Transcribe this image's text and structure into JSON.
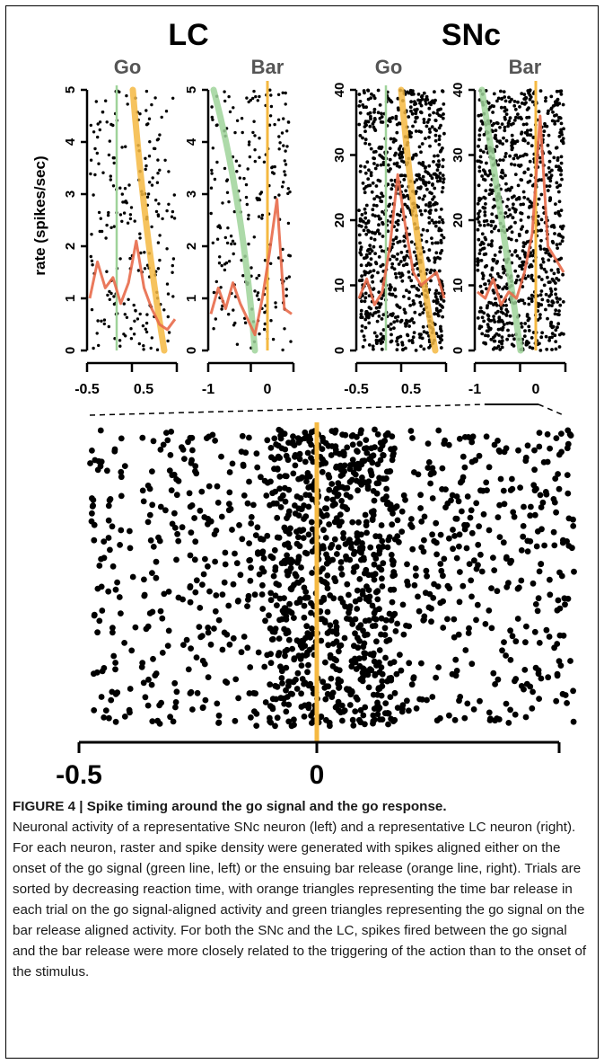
{
  "figure": {
    "group_titles": [
      "LC",
      "SNc"
    ],
    "ylabel": "rate (spikes/sec)",
    "panels": [
      {
        "title": "Go",
        "xticks": [
          "-0.5",
          "0.5"
        ],
        "yticks": [
          "0",
          "1",
          "2",
          "3",
          "4",
          "5"
        ],
        "ymax": 5
      },
      {
        "title": "Bar",
        "xticks": [
          "-1",
          "0"
        ],
        "yticks": [
          "0",
          "1",
          "2",
          "3",
          "4",
          "5"
        ],
        "ymax": 5
      },
      {
        "title": "Go",
        "xticks": [
          "-0.5",
          "0.5"
        ],
        "yticks": [
          "0",
          "10",
          "20",
          "30",
          "40"
        ],
        "ymax": 40
      },
      {
        "title": "Bar",
        "xticks": [
          "-1",
          "0"
        ],
        "yticks": [
          "0",
          "10",
          "20",
          "30",
          "40"
        ],
        "ymax": 40
      }
    ],
    "zoom_xticks": [
      "-0.5",
      "0"
    ],
    "colors": {
      "go_line": "#9fd39a",
      "bar_line": "#f5b942",
      "density": "#e86a4a",
      "spikes": "#000000"
    }
  },
  "chart_data": [
    {
      "type": "line",
      "title": "Go",
      "series": [
        {
          "values": [
            1.0,
            1.7,
            1.2,
            1.4,
            0.9,
            1.3,
            2.1,
            1.2,
            0.8,
            0.5,
            0.4,
            0.6
          ]
        }
      ],
      "ylim": [
        0,
        5
      ]
    },
    {
      "type": "line",
      "title": "Bar",
      "series": [
        {
          "values": [
            0.7,
            1.2,
            0.8,
            1.3,
            0.9,
            0.6,
            0.3,
            1.0,
            1.9,
            2.9,
            0.8,
            0.7
          ]
        }
      ],
      "ylim": [
        0,
        5
      ]
    },
    {
      "type": "line",
      "title": "Go",
      "series": [
        {
          "values": [
            8,
            11,
            7,
            9,
            16,
            27,
            19,
            12,
            10,
            11,
            12,
            8
          ]
        }
      ],
      "ylim": [
        0,
        40
      ]
    },
    {
      "type": "line",
      "title": "Bar",
      "series": [
        {
          "values": [
            9,
            8,
            11,
            7,
            9,
            8,
            12,
            18,
            36,
            16,
            14,
            12
          ]
        }
      ],
      "ylim": [
        0,
        40
      ]
    }
  ],
  "caption": {
    "title": "FIGURE 4 | Spike timing around the go signal and the go response.",
    "body": "Neuronal activity of a representative SNc neuron (left) and a representative LC neuron (right). For each neuron, raster and spike density were generated with spikes aligned either on the onset of the go signal (green line, left) or the ensuing bar release (orange line, right). Trials are sorted by decreasing reaction time, with orange triangles representing the time bar release in each trial on the go signal-aligned activity and green triangles representing the go signal on the bar release aligned activity. For both the SNc and the LC, spikes fired between the go signal and the bar release were more closely related to the triggering of the action than to the onset of the stimulus."
  }
}
